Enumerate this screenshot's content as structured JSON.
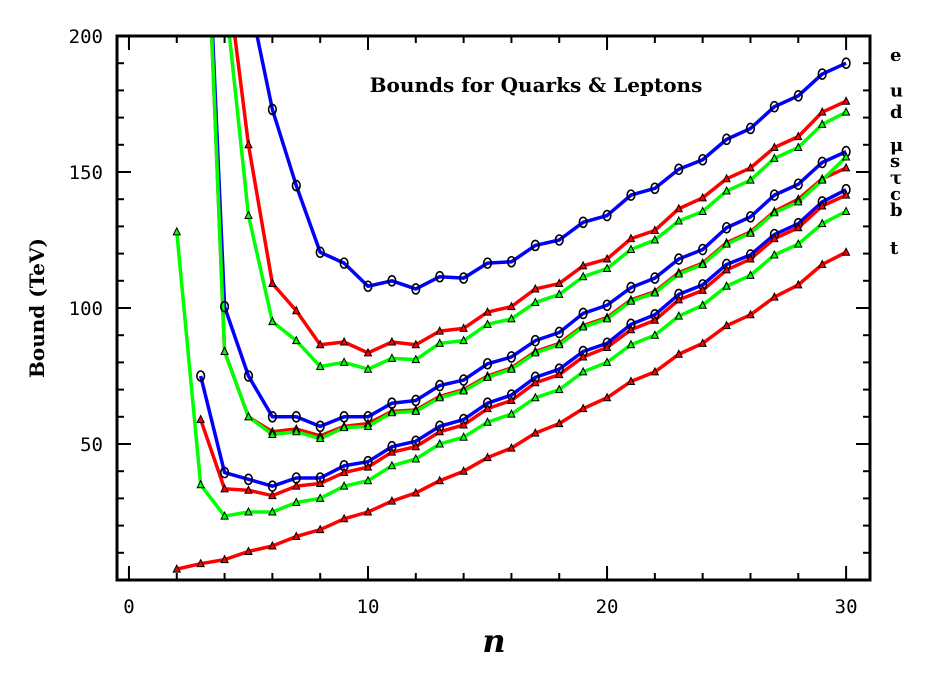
{
  "chart_data": {
    "type": "line",
    "title": "Bounds for Quarks & Leptons",
    "xlabel": "n",
    "ylabel": "Bound (TeV)",
    "xlim": [
      -0.5,
      31
    ],
    "ylim": [
      0,
      200
    ],
    "xticks": [
      0,
      10,
      20,
      30
    ],
    "yticks": [
      50,
      100,
      150,
      200
    ],
    "grid": false,
    "legend": "right side labels",
    "series": [
      {
        "label": "e",
        "color": "#0000ff",
        "marker": "circle",
        "label_y": 193,
        "x": [
          3,
          6,
          7,
          8,
          9,
          10,
          11,
          12,
          13,
          14,
          15,
          16,
          17,
          18,
          19,
          20,
          21,
          22,
          23,
          24,
          25,
          26,
          27,
          28,
          29,
          30
        ],
        "y": [
          300,
          173,
          145,
          120.5,
          116.5,
          108,
          110,
          107,
          111.5,
          111,
          116.5,
          117,
          123,
          125,
          131.5,
          134,
          141.5,
          144,
          151,
          154.5,
          162,
          166,
          174,
          178,
          186,
          190
        ]
      },
      {
        "label": "u",
        "color": "#ff0000",
        "marker": "triangle",
        "label_y": 180,
        "x": [
          3,
          5,
          6,
          7,
          8,
          9,
          10,
          11,
          12,
          13,
          14,
          15,
          16,
          17,
          18,
          19,
          20,
          21,
          22,
          23,
          24,
          25,
          26,
          27,
          28,
          29,
          30
        ],
        "y": [
          300,
          160,
          109,
          99,
          86.5,
          87.5,
          83.5,
          87.5,
          86.5,
          91.5,
          92.5,
          98.5,
          100.5,
          107,
          109,
          115.5,
          118,
          125.5,
          128.5,
          136.5,
          140.5,
          147.5,
          151.5,
          159,
          163,
          172,
          176
        ]
      },
      {
        "label": "d",
        "color": "#00ff00",
        "marker": "triangle",
        "label_y": 172,
        "x": [
          3,
          5,
          6,
          7,
          8,
          9,
          10,
          11,
          12,
          13,
          14,
          15,
          16,
          17,
          18,
          19,
          20,
          21,
          22,
          23,
          24,
          25,
          26,
          27,
          28,
          29,
          30
        ],
        "y": [
          300,
          134,
          95,
          88,
          78.5,
          80,
          77.5,
          81.5,
          81,
          87,
          88,
          94,
          96,
          102,
          105,
          111.5,
          114.5,
          121.5,
          125,
          132,
          135.5,
          143,
          147,
          155,
          159,
          167.5,
          172
        ]
      },
      {
        "label": "μ",
        "color": "#0000ff",
        "marker": "circle",
        "label_y": 160,
        "x": [
          3,
          4,
          5,
          6,
          7,
          8,
          9,
          10,
          11,
          12,
          13,
          14,
          15,
          16,
          17,
          18,
          19,
          20,
          21,
          22,
          23,
          24,
          25,
          26,
          27,
          28,
          29,
          30
        ],
        "y": [
          300,
          100.5,
          75,
          60,
          60,
          56.5,
          60,
          60,
          65,
          66,
          71.5,
          73.5,
          79.5,
          82,
          88,
          91,
          98,
          101,
          107.5,
          111,
          118,
          121.5,
          129.5,
          133.5,
          141.5,
          145.5,
          153.5,
          157.5
        ]
      },
      {
        "label": "s",
        "color": "#ff0000",
        "marker": "triangle",
        "label_y": 154,
        "x": [
          3,
          4,
          5,
          6,
          7,
          8,
          9,
          10,
          11,
          12,
          13,
          14,
          15,
          16,
          17,
          18,
          19,
          20,
          21,
          22,
          23,
          24,
          25,
          26,
          27,
          28,
          29,
          30
        ],
        "y": [
          300,
          84,
          60,
          54.5,
          55.5,
          53,
          56.5,
          57.5,
          62,
          62.5,
          67.5,
          70,
          75,
          78,
          84,
          87,
          93.5,
          96.5,
          103,
          106,
          113,
          116.5,
          124,
          128,
          135.5,
          140,
          147.5,
          151.5
        ]
      },
      {
        "label": "τ",
        "color": "#00ff00",
        "marker": "triangle",
        "label_y": 148,
        "x": [
          3,
          4,
          5,
          6,
          7,
          8,
          9,
          10,
          11,
          12,
          13,
          14,
          15,
          16,
          17,
          18,
          19,
          20,
          21,
          22,
          23,
          24,
          25,
          26,
          27,
          28,
          29,
          30
        ],
        "y": [
          300,
          84,
          60,
          53.5,
          54.5,
          52,
          56,
          56.5,
          61.5,
          62,
          67,
          69.5,
          74.5,
          77.5,
          83.5,
          86.5,
          93,
          96,
          102.5,
          105.5,
          112.5,
          116,
          123.5,
          127.5,
          135,
          139,
          147,
          155.5
        ]
      },
      {
        "label": "c",
        "color": "#0000ff",
        "marker": "circle",
        "label_y": 142,
        "x": [
          3,
          4,
          5,
          6,
          7,
          8,
          9,
          10,
          11,
          12,
          13,
          14,
          15,
          16,
          17,
          18,
          19,
          20,
          21,
          22,
          23,
          24,
          25,
          26,
          27,
          28,
          29,
          30
        ],
        "y": [
          75,
          39.5,
          37,
          34.5,
          37.5,
          37.5,
          42,
          43.5,
          49,
          51,
          56.5,
          59,
          65,
          68,
          74.5,
          77.5,
          84,
          87,
          94,
          97.5,
          105,
          108.5,
          116,
          119.5,
          127,
          131,
          139,
          143.5
        ]
      },
      {
        "label": "b",
        "color": "#ff0000",
        "marker": "triangle",
        "label_y": 136,
        "x": [
          3,
          4,
          5,
          6,
          7,
          8,
          9,
          10,
          11,
          12,
          13,
          14,
          15,
          16,
          17,
          18,
          19,
          20,
          21,
          22,
          23,
          24,
          25,
          26,
          27,
          28,
          29,
          30
        ],
        "y": [
          59,
          33.5,
          33,
          31,
          34.5,
          35.5,
          39.5,
          41.5,
          47,
          49,
          54.5,
          57,
          63,
          66,
          72.5,
          75.5,
          82,
          85.5,
          92,
          95.5,
          103,
          106.5,
          114,
          118,
          125.5,
          129.5,
          137.5,
          141.5
        ]
      },
      {
        "label": "",
        "color": "#00ff00",
        "marker": "triangle",
        "label_y": null,
        "x": [
          2,
          3,
          4,
          5,
          6,
          7,
          8,
          9,
          10,
          11,
          12,
          13,
          14,
          15,
          16,
          17,
          18,
          19,
          20,
          21,
          22,
          23,
          24,
          25,
          26,
          27,
          28,
          29,
          30
        ],
        "y": [
          128,
          35,
          23.5,
          25,
          25,
          28.5,
          30,
          34.5,
          36.5,
          42,
          44.5,
          50,
          52.5,
          58,
          61,
          67,
          70,
          76.5,
          80,
          86.5,
          90,
          97,
          101,
          108,
          112,
          119.5,
          123.5,
          131,
          135.5
        ]
      },
      {
        "label": "t",
        "color": "#ff0000",
        "marker": "triangle",
        "label_y": 122,
        "x": [
          2,
          3,
          4,
          5,
          6,
          7,
          8,
          9,
          10,
          11,
          12,
          13,
          14,
          15,
          16,
          17,
          18,
          19,
          20,
          21,
          22,
          23,
          24,
          25,
          26,
          27,
          28,
          29,
          30
        ],
        "y": [
          4,
          6,
          7.5,
          10.5,
          12.5,
          16,
          18.5,
          22.5,
          25,
          29,
          32,
          36.5,
          40,
          45,
          48.5,
          54,
          57.5,
          63,
          67,
          73,
          76.5,
          83,
          87,
          93.5,
          97.5,
          104,
          108.5,
          116,
          120.5
        ]
      }
    ]
  }
}
